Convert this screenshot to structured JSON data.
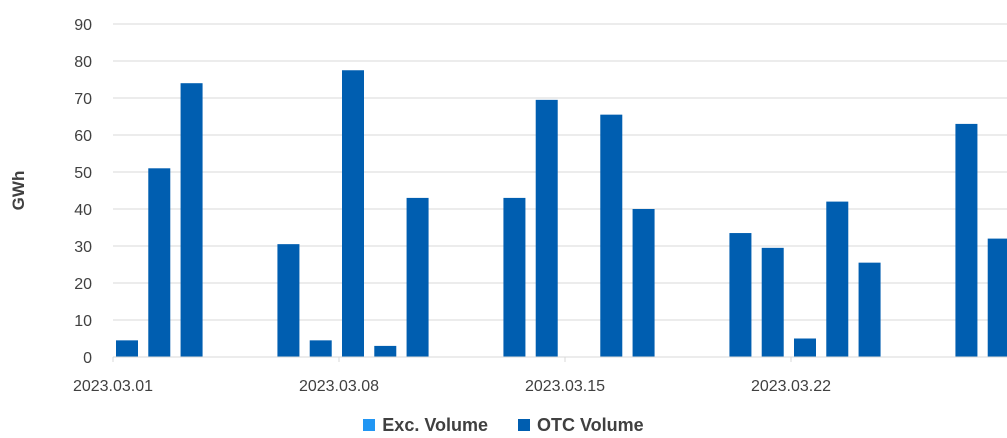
{
  "chart_data": {
    "type": "bar",
    "ylabel": "GWh",
    "ylim": [
      0,
      90
    ],
    "yticks": [
      0,
      10,
      20,
      30,
      40,
      50,
      60,
      70,
      80,
      90
    ],
    "grid": true,
    "legend_position": "bottom",
    "x_tick_labels": [
      {
        "date": "2023-03-01",
        "label": "2023.03.01"
      },
      {
        "date": "2023-03-08",
        "label": "2023.03.08"
      },
      {
        "date": "2023-03-15",
        "label": "2023.03.15"
      },
      {
        "date": "2023-03-22",
        "label": "2023.03.22"
      }
    ],
    "x": [
      "2023-03-01",
      "2023-03-02",
      "2023-03-03",
      "2023-03-06",
      "2023-03-07",
      "2023-03-08",
      "2023-03-09",
      "2023-03-10",
      "2023-03-13",
      "2023-03-14",
      "2023-03-16",
      "2023-03-17",
      "2023-03-20",
      "2023-03-21",
      "2023-03-22",
      "2023-03-23",
      "2023-03-24",
      "2023-03-27",
      "2023-03-28"
    ],
    "series": [
      {
        "name": "Exc. Volume",
        "color": "#2196f3",
        "values": [
          0,
          0,
          0,
          0,
          0,
          0,
          0,
          0,
          0,
          0,
          0,
          0,
          0,
          0,
          0,
          0,
          0,
          0,
          0
        ]
      },
      {
        "name": "OTC Volume",
        "color": "#005eb0",
        "values": [
          4.5,
          51,
          74,
          30.5,
          4.5,
          77.5,
          3,
          43,
          43,
          69.5,
          65.5,
          40,
          33.5,
          29.5,
          5,
          42,
          25.5,
          63,
          32
        ]
      }
    ]
  },
  "legend": {
    "items": [
      {
        "label": "Exc. Volume",
        "color": "#2196f3"
      },
      {
        "label": "OTC Volume",
        "color": "#005eb0"
      }
    ]
  }
}
